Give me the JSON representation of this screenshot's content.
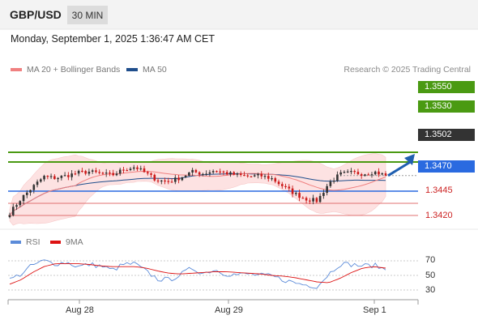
{
  "header": {
    "symbol": "GBP/USD",
    "timeframe": "30 MIN",
    "timestamp": "Monday, September 1, 2025 1:36:47 AM CET"
  },
  "legend": {
    "main": [
      {
        "label": "MA 20 + Bollinger Bands",
        "color": "#f08080"
      },
      {
        "label": "MA 50",
        "color": "#1f4e8c"
      }
    ],
    "rsi": [
      {
        "label": "RSI",
        "color": "#5b8bd9"
      },
      {
        "label": "9MA",
        "color": "#dd1111"
      }
    ]
  },
  "credit": "Research © 2025 Trading Central",
  "colors": {
    "resistance": "#4a9a12",
    "pivot": "#2a6ae0",
    "support": "#e07070",
    "current": "#333333",
    "candle_up": "#333333",
    "candle_down": "#cc1a1a",
    "bollinger_fill": "#fde2e2"
  },
  "chart_data": {
    "type": "candlestick",
    "instrument": "GBP/USD",
    "timeframe": "30 MIN",
    "x_axis": {
      "tick_labels": [
        "Aug 28",
        "Aug 29",
        "Sep 1"
      ]
    },
    "y_axis": {
      "price_range": [
        1.3405,
        1.3565
      ],
      "position": "right"
    },
    "levels": [
      {
        "value": 1.355,
        "label": "1.3550",
        "type": "resistance"
      },
      {
        "value": 1.353,
        "label": "1.3530",
        "type": "resistance"
      },
      {
        "value": 1.3502,
        "label": "1.3502",
        "type": "current"
      },
      {
        "value": 1.347,
        "label": "1.3470",
        "type": "pivot"
      },
      {
        "value": 1.3445,
        "label": "1.3445",
        "type": "support"
      },
      {
        "value": 1.342,
        "label": "1.3420",
        "type": "support"
      }
    ],
    "projection": {
      "from": 1.3502,
      "to": 1.355,
      "direction": "up"
    },
    "price_path": [
      1.3425,
      1.3455,
      1.3478,
      1.35,
      1.3497,
      1.3502,
      1.3508,
      1.351,
      1.3506,
      1.3503,
      1.3515,
      1.352,
      1.3506,
      1.3492,
      1.349,
      1.3498,
      1.351,
      1.3506,
      1.3513,
      1.3507,
      1.3503,
      1.35,
      1.3502,
      1.3496,
      1.348,
      1.3465,
      1.3454,
      1.345,
      1.3486,
      1.3505,
      1.3508,
      1.3506,
      1.351,
      1.3502
    ],
    "rsi": {
      "ticks": [
        70,
        50,
        30
      ],
      "values": [
        44,
        52,
        64,
        70,
        66,
        68,
        62,
        65,
        63,
        57,
        65,
        66,
        55,
        45,
        44,
        51,
        60,
        53,
        58,
        52,
        51,
        52,
        50,
        49,
        44,
        40,
        37,
        35,
        52,
        66,
        65,
        63,
        64,
        58
      ],
      "ma9": [
        38,
        44,
        54,
        62,
        66,
        66,
        66,
        65,
        63,
        62,
        62,
        62,
        60,
        56,
        53,
        52,
        53,
        54,
        55,
        55,
        54,
        53,
        52,
        50,
        49,
        47,
        44,
        41,
        40,
        46,
        54,
        60,
        62,
        60
      ]
    }
  },
  "rsi_labels": {
    "ticks": [
      "70",
      "50",
      "30"
    ]
  },
  "dates": [
    "Aug 28",
    "Aug 29",
    "Sep 1"
  ]
}
